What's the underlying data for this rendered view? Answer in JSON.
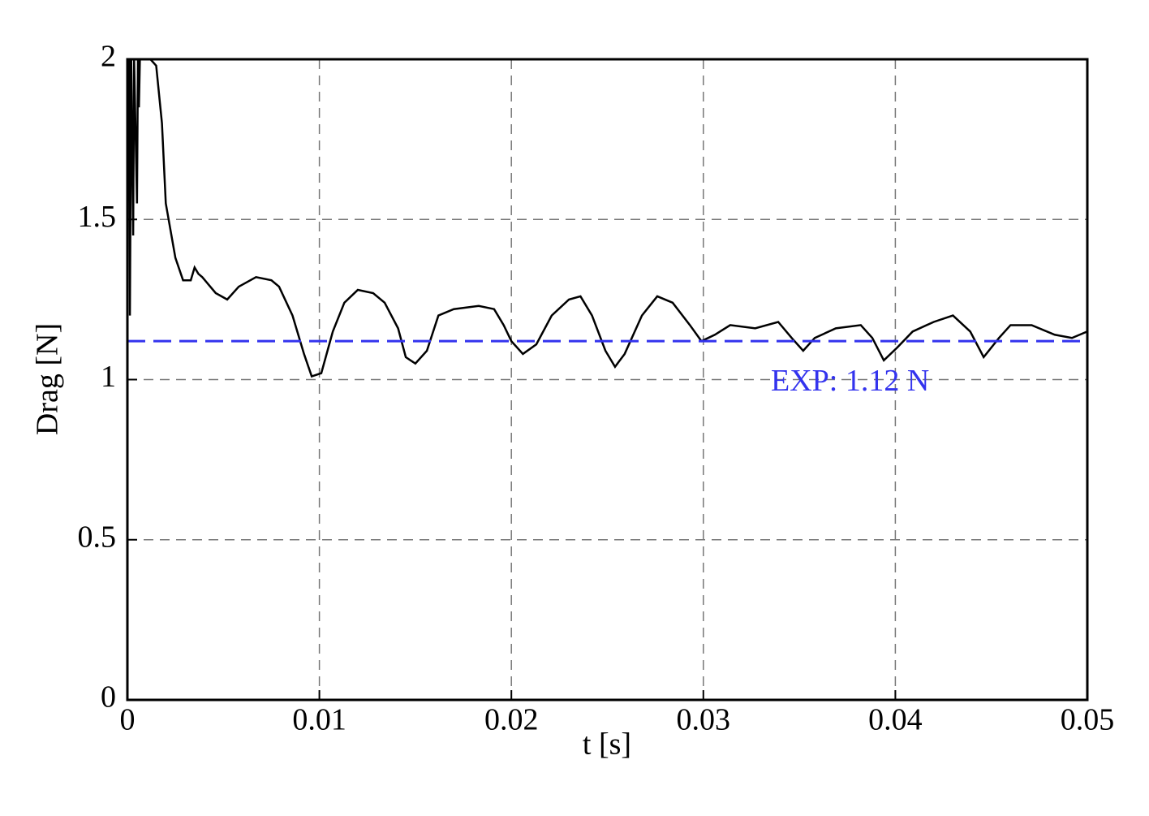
{
  "chart_data": {
    "type": "line",
    "x_label": "t [s]",
    "y_label": "Drag [N]",
    "xlim": [
      0,
      0.05
    ],
    "ylim": [
      0,
      2
    ],
    "xticks": [
      0,
      0.01,
      0.02,
      0.03,
      0.04,
      0.05
    ],
    "yticks": [
      0,
      0.5,
      1,
      1.5,
      2
    ],
    "grid": true,
    "series": [
      {
        "color": "#000000",
        "x": [
          0,
          0.0001,
          0.00013,
          0.0002,
          0.0003,
          0.00035,
          0.0005,
          0.00055,
          0.0006,
          0.00065,
          0.0012,
          0.0015,
          0.0018,
          0.002,
          0.0025,
          0.0029,
          0.0033,
          0.0035,
          0.0037,
          0.0039,
          0.0046,
          0.0052,
          0.0058,
          0.0067,
          0.0075,
          0.0079,
          0.0086,
          0.0092,
          0.0096,
          0.0101,
          0.0107,
          0.0113,
          0.012,
          0.0128,
          0.0134,
          0.0141,
          0.0145,
          0.015,
          0.0156,
          0.0162,
          0.017,
          0.0183,
          0.0191,
          0.0196,
          0.02,
          0.0206,
          0.0213,
          0.0221,
          0.023,
          0.0236,
          0.0242,
          0.0249,
          0.0254,
          0.0259,
          0.0268,
          0.0276,
          0.0284,
          0.0293,
          0.0299,
          0.0306,
          0.0314,
          0.0327,
          0.0339,
          0.0346,
          0.0352,
          0.0358,
          0.0369,
          0.0382,
          0.0388,
          0.0394,
          0.0401,
          0.0409,
          0.042,
          0.043,
          0.0439,
          0.0446,
          0.0454,
          0.046,
          0.0471,
          0.0483,
          0.0492,
          0.05
        ],
        "values": [
          2,
          2,
          1.2,
          2,
          1.45,
          2,
          1.55,
          2,
          1.85,
          2,
          2,
          1.98,
          1.8,
          1.55,
          1.38,
          1.31,
          1.31,
          1.35,
          1.33,
          1.32,
          1.27,
          1.25,
          1.29,
          1.32,
          1.31,
          1.29,
          1.2,
          1.08,
          1.01,
          1.02,
          1.15,
          1.24,
          1.28,
          1.27,
          1.24,
          1.16,
          1.07,
          1.05,
          1.09,
          1.2,
          1.22,
          1.23,
          1.22,
          1.17,
          1.12,
          1.08,
          1.11,
          1.2,
          1.25,
          1.26,
          1.2,
          1.09,
          1.04,
          1.08,
          1.2,
          1.26,
          1.24,
          1.17,
          1.12,
          1.14,
          1.17,
          1.16,
          1.18,
          1.13,
          1.09,
          1.13,
          1.16,
          1.17,
          1.13,
          1.06,
          1.1,
          1.15,
          1.18,
          1.2,
          1.15,
          1.07,
          1.13,
          1.17,
          1.17,
          1.14,
          1.13,
          1.15
        ]
      }
    ],
    "reference": {
      "value": 1.12,
      "label": "EXP: 1.12 N",
      "color": "#3333ee"
    }
  }
}
